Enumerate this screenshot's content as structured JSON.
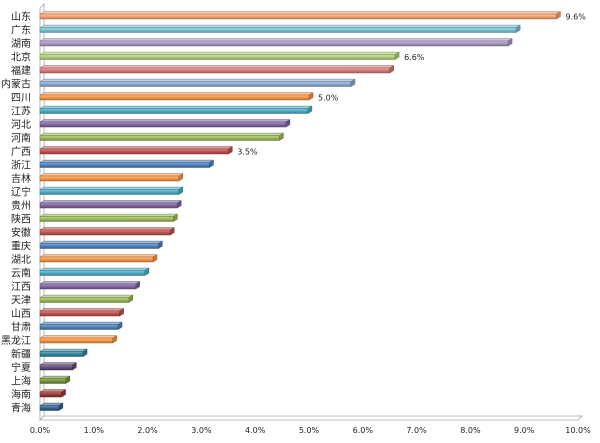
{
  "chart_data": {
    "type": "bar",
    "orientation": "horizontal",
    "categories": [
      "山东",
      "广东",
      "湖南",
      "北京",
      "福建",
      "内蒙古",
      "四川",
      "江苏",
      "河北",
      "河南",
      "广西",
      "浙江",
      "吉林",
      "辽宁",
      "贵州",
      "陕西",
      "安徽",
      "重庆",
      "湖北",
      "云南",
      "江西",
      "天津",
      "山西",
      "甘肃",
      "黑龙江",
      "新疆",
      "宁夏",
      "上海",
      "海南",
      "青海"
    ],
    "values": [
      9.6,
      8.85,
      8.7,
      6.6,
      6.5,
      5.78,
      5.0,
      4.98,
      4.57,
      4.45,
      3.5,
      3.15,
      2.58,
      2.58,
      2.55,
      2.48,
      2.42,
      2.2,
      2.1,
      1.95,
      1.78,
      1.65,
      1.48,
      1.45,
      1.35,
      0.8,
      0.6,
      0.48,
      0.4,
      0.35
    ],
    "colors": [
      "#f7a270",
      "#7cc4d6",
      "#a897c0",
      "#b1cf7a",
      "#d67b78",
      "#8aa9d5",
      "#f79646",
      "#4bacc6",
      "#8064a2",
      "#9bbb59",
      "#c0504d",
      "#4f81bd",
      "#f79646",
      "#4bacc6",
      "#8064a2",
      "#9bbb59",
      "#c0504d",
      "#4f81bd",
      "#f79646",
      "#4bacc6",
      "#8064a2",
      "#9bbb59",
      "#c0504d",
      "#4f81bd",
      "#f79646",
      "#31859c",
      "#5f497a",
      "#76923c",
      "#953735",
      "#366092"
    ],
    "data_labels": {
      "0": "9.6%",
      "3": "6.6%",
      "6": "5.0%",
      "10": "3.5%"
    },
    "xlim": [
      0,
      10
    ],
    "xticks": [
      "0.0%",
      "1.0%",
      "2.0%",
      "3.0%",
      "4.0%",
      "5.0%",
      "6.0%",
      "7.0%",
      "8.0%",
      "9.0%",
      "10.0%"
    ],
    "grid": false,
    "legend": "none",
    "title": "",
    "xlabel": "",
    "ylabel": ""
  }
}
